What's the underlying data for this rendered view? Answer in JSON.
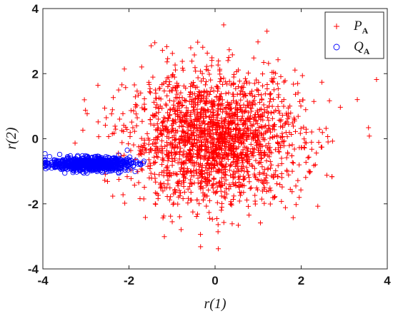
{
  "chart_data": {
    "type": "scatter",
    "xlabel": "r(1)",
    "ylabel": "r(2)",
    "xlim": [
      -4,
      4
    ],
    "ylim": [
      -4,
      4
    ],
    "xticks": [
      "-4",
      "-2",
      "0",
      "2",
      "4"
    ],
    "yticks": [
      "-4",
      "-2",
      "0",
      "2",
      "4"
    ],
    "grid": false,
    "legend_position": "top-right",
    "series": [
      {
        "name": "P",
        "subscript": "A",
        "marker": "plus",
        "color": "#ff0000",
        "distribution": "gaussian",
        "count": 2000,
        "mean": [
          0.0,
          0.0
        ],
        "std": [
          1.0,
          1.0
        ],
        "highlight_points": [
          [
            3.75,
            1.82
          ],
          [
            0.2,
            3.5
          ],
          [
            -1.4,
            2.95
          ]
        ]
      },
      {
        "name": "Q",
        "subscript": "A",
        "marker": "circle-open",
        "color": "#0000ff",
        "distribution": "gaussian",
        "count": 800,
        "mean": [
          -2.9,
          -0.78
        ],
        "std": [
          0.45,
          0.1
        ],
        "x_range": [
          -3.95,
          -1.5
        ]
      }
    ]
  }
}
